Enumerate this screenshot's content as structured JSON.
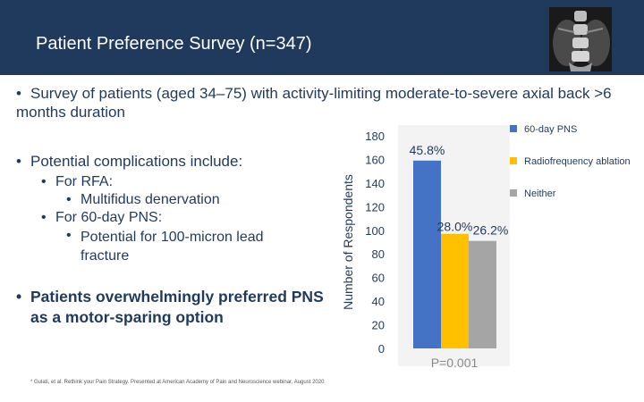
{
  "header": {
    "title": "Patient Preference Survey (n=347)"
  },
  "bullets": {
    "survey": "Survey of patients (aged 34–75) with activity-limiting moderate-to-severe axial back >6 months duration",
    "complications": "Potential complications include:",
    "rfa_label": "For RFA:",
    "rfa_item": "Multifidus denervation",
    "pns_label": "For 60-day PNS:",
    "pns_item": "Potential for 100-micron lead fracture",
    "conclusion": "Patients overwhelmingly preferred PNS as a motor-sparing option"
  },
  "footnote": "* Gulati, et al. Rethink your Pain Strategy. Presented at American Academy of Pain and Neuroscience webinar, August 2020",
  "chart_data": {
    "type": "bar",
    "categories": [
      "60-day PNS",
      "Radiofrequency ablation",
      "Neither"
    ],
    "values": [
      159,
      97,
      91
    ],
    "data_labels": [
      "45.8%",
      "28.0%",
      "26.2%"
    ],
    "colors": [
      "#4472c4",
      "#ffc000",
      "#a5a5a5"
    ],
    "ylabel": "Number of Respondents",
    "ylim": [
      0,
      180
    ],
    "yticks": [
      0,
      20,
      40,
      60,
      80,
      100,
      120,
      140,
      160,
      180
    ],
    "legend": "right",
    "annotation": "P=0.001",
    "grid": false
  }
}
